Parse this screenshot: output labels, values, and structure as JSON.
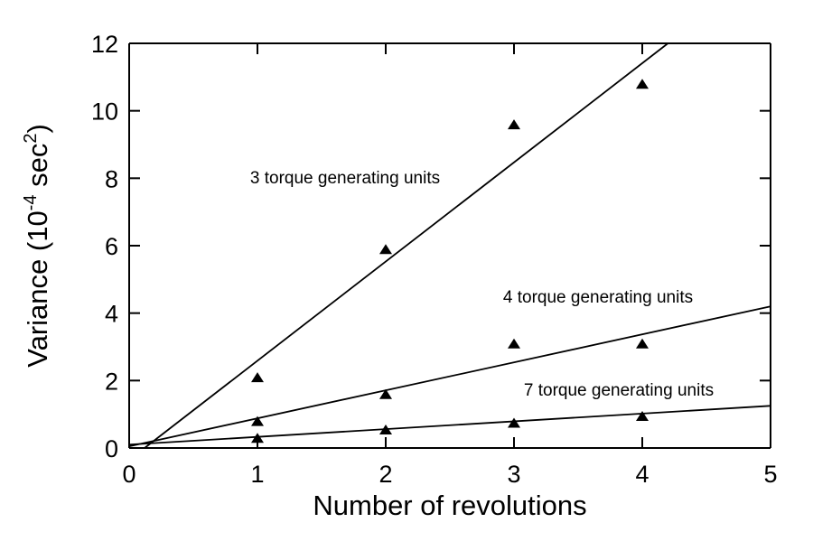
{
  "chart_data": {
    "type": "scatter",
    "xlabel": "Number of revolutions",
    "ylabel_main": "Variance (10",
    "ylabel_exp": "-4",
    "ylabel_unit": " sec",
    "ylabel_unit_exp": "2",
    "ylabel_close": ")",
    "xlim": [
      0,
      5
    ],
    "ylim": [
      0,
      12
    ],
    "xticks": [
      "0",
      "1",
      "2",
      "3",
      "4",
      "5"
    ],
    "yticks": [
      "0",
      "2",
      "4",
      "6",
      "8",
      "10",
      "12"
    ],
    "grid": false,
    "legend": "none",
    "marker": "triangle",
    "series": [
      {
        "label": "3 torque generating units",
        "x": [
          1,
          2,
          3,
          4
        ],
        "y": [
          2.1,
          5.9,
          9.6,
          10.8
        ],
        "fit": {
          "x": [
            0.12,
            4.2
          ],
          "y": [
            0.0,
            12.0
          ]
        }
      },
      {
        "label": "4 torque generating units",
        "x": [
          1,
          2,
          3,
          4
        ],
        "y": [
          0.8,
          1.6,
          3.1,
          3.1
        ],
        "fit": {
          "x": [
            0.0,
            5.0
          ],
          "y": [
            0.05,
            4.2
          ]
        }
      },
      {
        "label": "7 torque generating units",
        "x": [
          1,
          2,
          3,
          4
        ],
        "y": [
          0.3,
          0.55,
          0.75,
          0.95
        ],
        "fit": {
          "x": [
            0.0,
            5.0
          ],
          "y": [
            0.1,
            1.25
          ]
        }
      }
    ]
  }
}
